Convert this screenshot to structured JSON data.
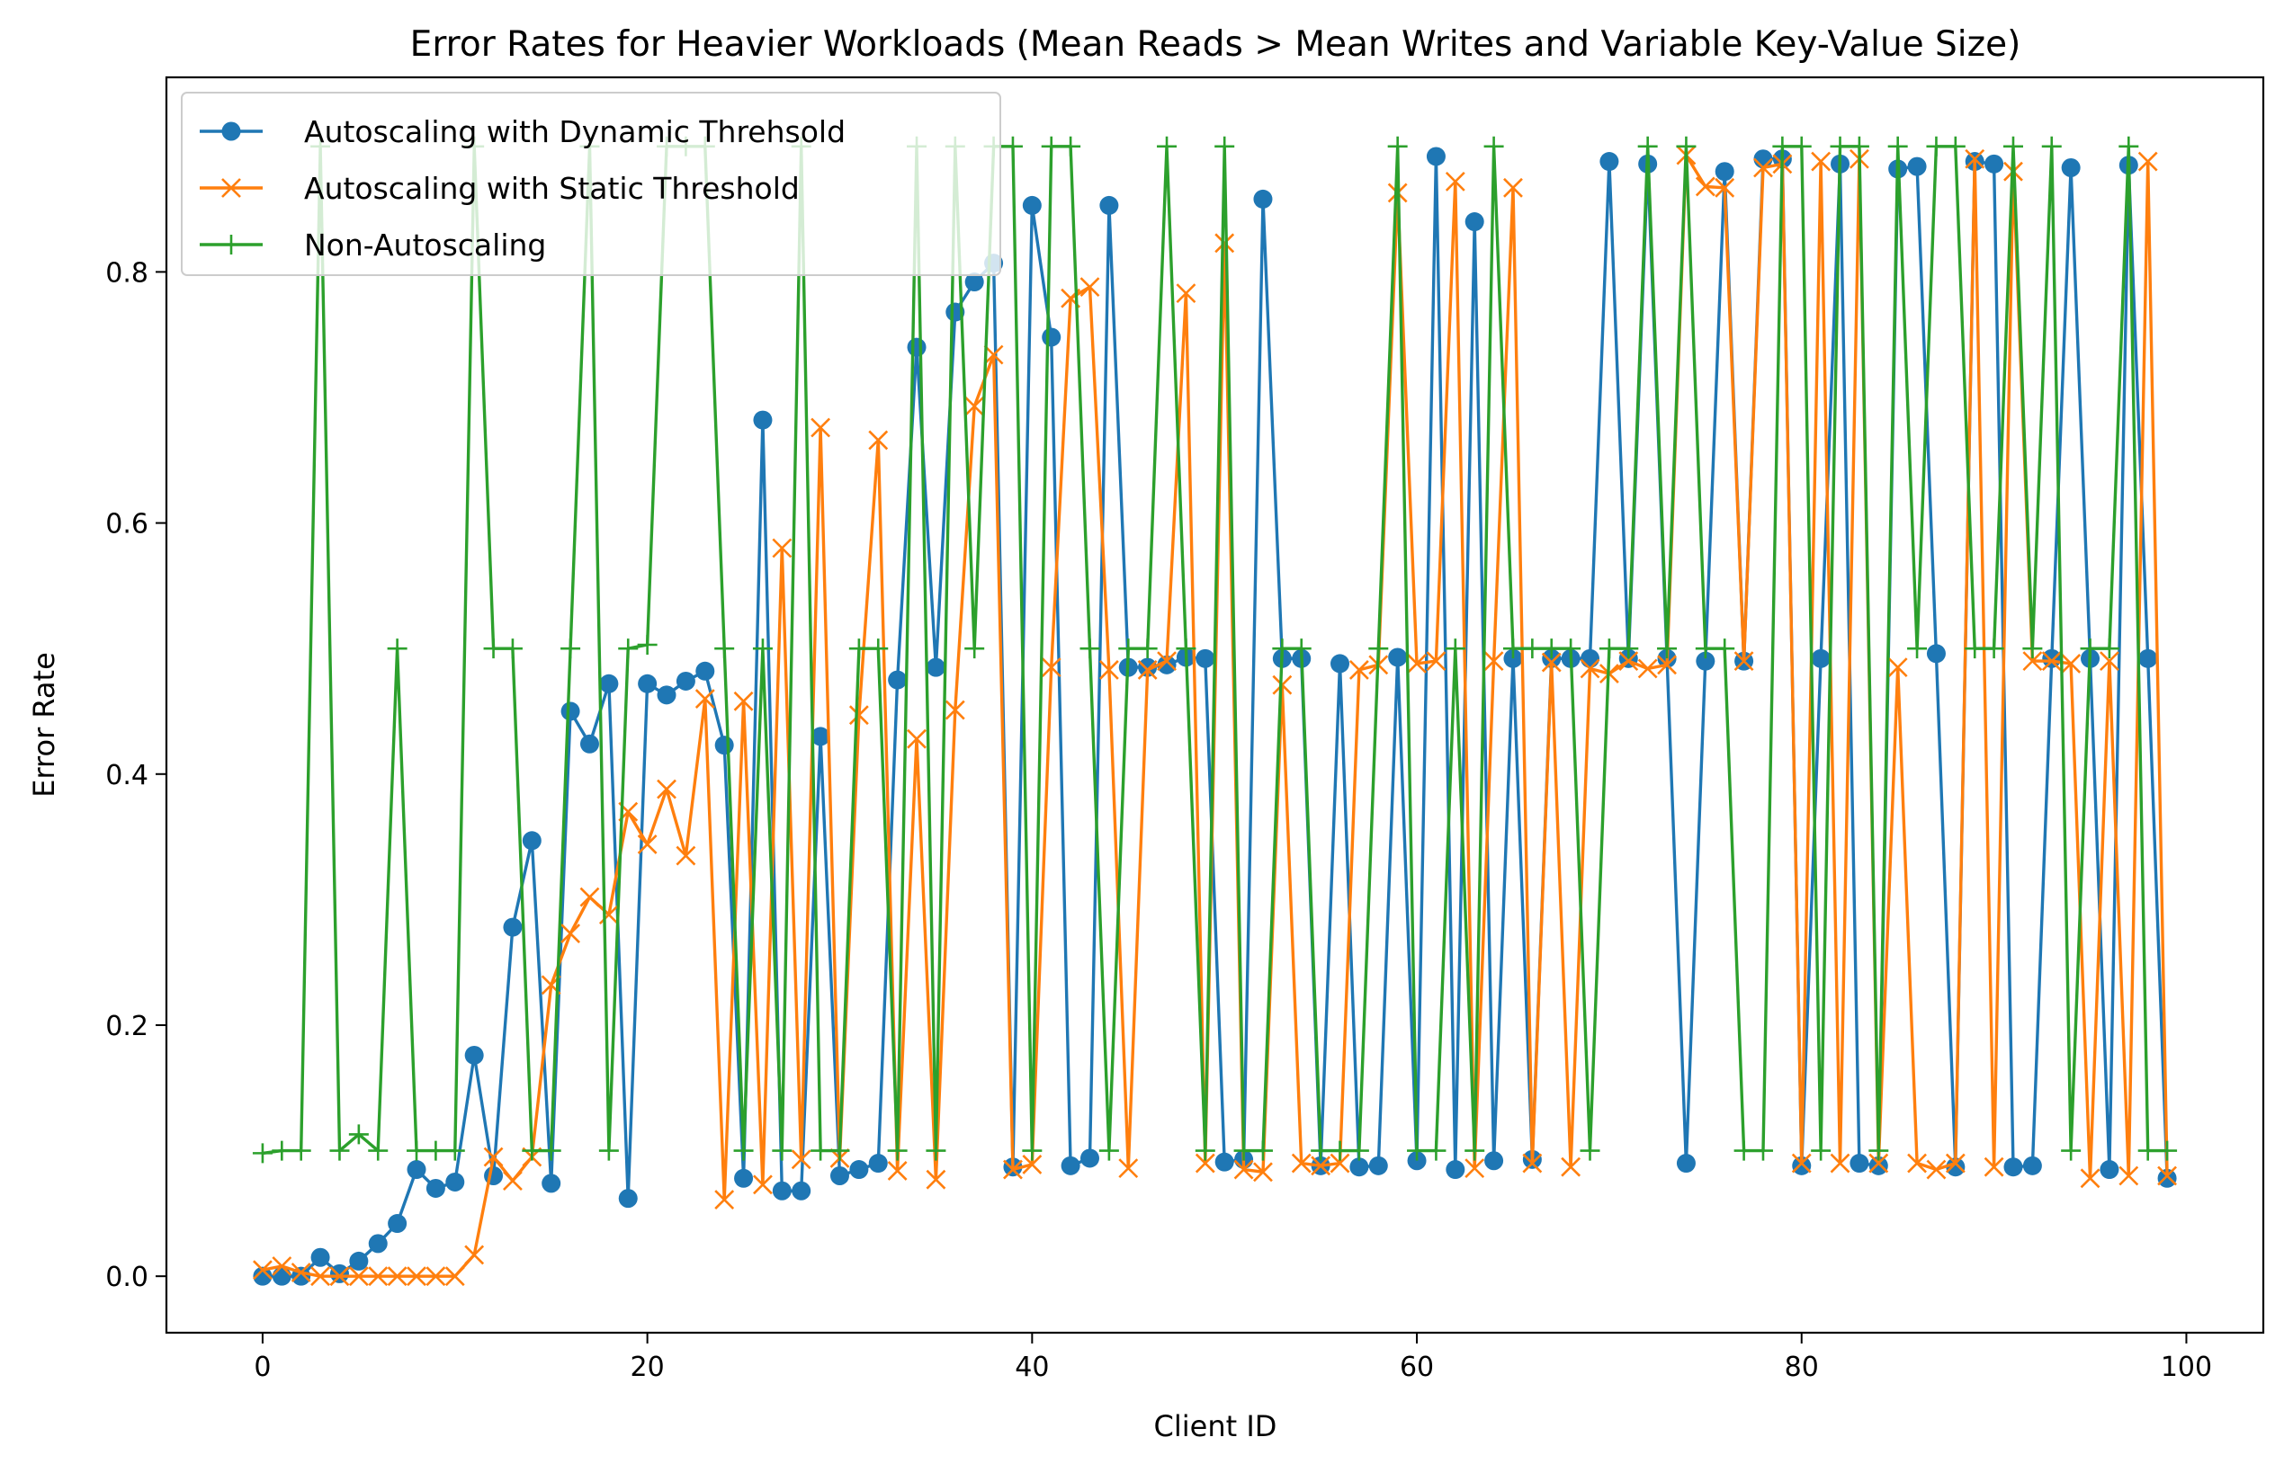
{
  "chart_data": {
    "type": "line",
    "title": "Error Rates for Heavier Workloads (Mean Reads > Mean Writes and Variable Key-Value Size)",
    "xlabel": "Client ID",
    "ylabel": "Error Rate",
    "xlim": [
      -5,
      104
    ],
    "ylim": [
      -0.045,
      0.955
    ],
    "xticks": [
      0,
      20,
      40,
      60,
      80,
      100
    ],
    "yticks": [
      0.0,
      0.2,
      0.4,
      0.6,
      0.8
    ],
    "xtick_labels": [
      "0",
      "20",
      "40",
      "60",
      "80",
      "100"
    ],
    "ytick_labels": [
      "0.0",
      "0.2",
      "0.4",
      "0.6",
      "0.8"
    ],
    "grid": false,
    "legend_position": "upper-left",
    "series": [
      {
        "name": "Autoscaling with Dynamic Threhsold",
        "color": "#1f77b4",
        "marker": "circle",
        "values": [
          0.0,
          0.0,
          0.0,
          0.015,
          0.002,
          0.012,
          0.026,
          0.042,
          0.085,
          0.07,
          0.075,
          0.176,
          0.08,
          0.278,
          0.347,
          0.074,
          0.45,
          0.424,
          0.472,
          0.062,
          0.472,
          0.463,
          0.474,
          0.482,
          0.423,
          0.078,
          0.682,
          0.068,
          0.068,
          0.43,
          0.08,
          0.085,
          0.09,
          0.475,
          0.74,
          0.485,
          0.768,
          0.792,
          0.807,
          0.087,
          0.853,
          0.748,
          0.088,
          0.094,
          0.853,
          0.485,
          0.485,
          0.487,
          0.493,
          0.492,
          0.091,
          0.093,
          0.858,
          0.492,
          0.492,
          0.088,
          0.488,
          0.087,
          0.088,
          0.493,
          0.092,
          0.892,
          0.085,
          0.84,
          0.092,
          0.492,
          0.093,
          0.492,
          0.492,
          0.492,
          0.888,
          0.492,
          0.886,
          0.492,
          0.09,
          0.49,
          0.88,
          0.49,
          0.89,
          0.89,
          0.088,
          0.492,
          0.886,
          0.09,
          0.088,
          0.882,
          0.884,
          0.496,
          0.087,
          0.888,
          0.886,
          0.087,
          0.088,
          0.492,
          0.883,
          0.492,
          0.085,
          0.885,
          0.492,
          0.078
        ]
      },
      {
        "name": "Autoscaling with Static Threshold",
        "color": "#ff7f0e",
        "marker": "x",
        "values": [
          0.005,
          0.008,
          0.003,
          0.0,
          0.0,
          0.0,
          0.0,
          0.0,
          0.0,
          0.0,
          0.0,
          0.017,
          0.095,
          0.076,
          0.095,
          0.232,
          0.273,
          0.302,
          0.288,
          0.37,
          0.344,
          0.388,
          0.335,
          0.46,
          0.061,
          0.458,
          0.073,
          0.58,
          0.093,
          0.676,
          0.094,
          0.447,
          0.666,
          0.084,
          0.428,
          0.077,
          0.451,
          0.693,
          0.734,
          0.085,
          0.089,
          0.485,
          0.779,
          0.788,
          0.483,
          0.086,
          0.483,
          0.49,
          0.783,
          0.09,
          0.823,
          0.085,
          0.083,
          0.471,
          0.09,
          0.088,
          0.09,
          0.483,
          0.487,
          0.863,
          0.488,
          0.49,
          0.872,
          0.086,
          0.49,
          0.867,
          0.09,
          0.489,
          0.087,
          0.484,
          0.48,
          0.49,
          0.484,
          0.487,
          0.893,
          0.868,
          0.867,
          0.49,
          0.883,
          0.886,
          0.09,
          0.888,
          0.09,
          0.89,
          0.09,
          0.485,
          0.09,
          0.085,
          0.09,
          0.89,
          0.087,
          0.88,
          0.49,
          0.49,
          0.488,
          0.078,
          0.49,
          0.08,
          0.888,
          0.08
        ]
      },
      {
        "name": "Non-Autoscaling",
        "color": "#2ca02c",
        "marker": "plus",
        "values": [
          0.098,
          0.1,
          0.1,
          0.9,
          0.1,
          0.113,
          0.1,
          0.5,
          0.1,
          0.1,
          0.1,
          0.9,
          0.5,
          0.5,
          0.1,
          0.1,
          0.5,
          0.9,
          0.1,
          0.5,
          0.503,
          0.9,
          0.9,
          0.9,
          0.5,
          0.1,
          0.5,
          0.1,
          0.9,
          0.1,
          0.1,
          0.5,
          0.5,
          0.1,
          0.9,
          0.1,
          0.9,
          0.5,
          0.9,
          0.9,
          0.1,
          0.9,
          0.9,
          0.5,
          0.1,
          0.5,
          0.5,
          0.9,
          0.5,
          0.1,
          0.9,
          0.1,
          0.1,
          0.5,
          0.5,
          0.1,
          0.1,
          0.1,
          0.5,
          0.9,
          0.1,
          0.1,
          0.5,
          0.1,
          0.9,
          0.5,
          0.5,
          0.5,
          0.5,
          0.1,
          0.5,
          0.5,
          0.9,
          0.5,
          0.9,
          0.5,
          0.5,
          0.1,
          0.1,
          0.9,
          0.9,
          0.1,
          0.9,
          0.9,
          0.1,
          0.9,
          0.5,
          0.9,
          0.9,
          0.5,
          0.5,
          0.9,
          0.5,
          0.9,
          0.1,
          0.5,
          0.5,
          0.9,
          0.1,
          0.1
        ]
      }
    ]
  }
}
